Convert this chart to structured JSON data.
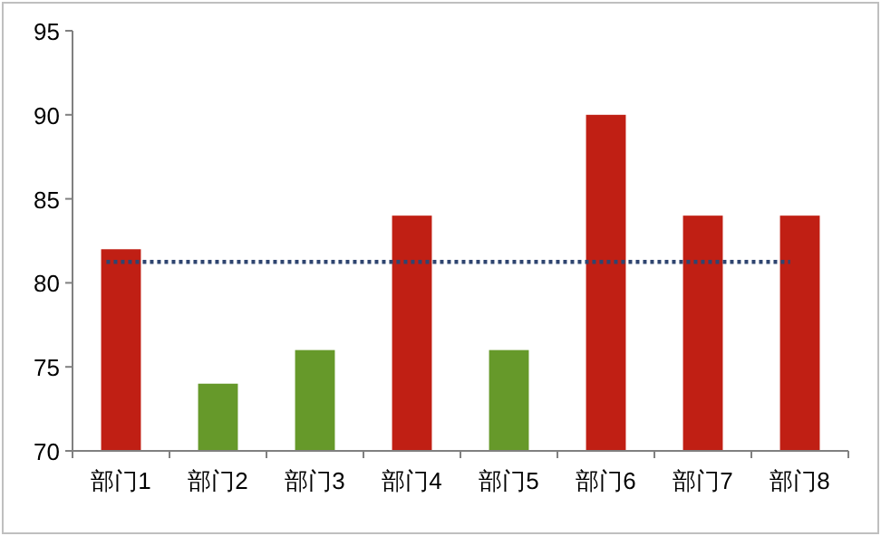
{
  "chart_data": {
    "type": "bar",
    "categories": [
      "部门1",
      "部门2",
      "部门3",
      "部门4",
      "部门5",
      "部门6",
      "部门7",
      "部门8"
    ],
    "values": [
      82,
      74,
      76,
      84,
      76,
      90,
      84,
      84
    ],
    "colors": [
      "#c01f14",
      "#66992a",
      "#66992a",
      "#c01f14",
      "#66992a",
      "#c01f14",
      "#c01f14",
      "#c01f14"
    ],
    "ylim": [
      70,
      95
    ],
    "yticks": [
      70,
      75,
      80,
      85,
      90,
      95
    ],
    "grid": false,
    "ref_lines": [
      {
        "axis": "y",
        "value": 81.25,
        "color": "#2f4570",
        "line_style": "dotted"
      }
    ]
  }
}
